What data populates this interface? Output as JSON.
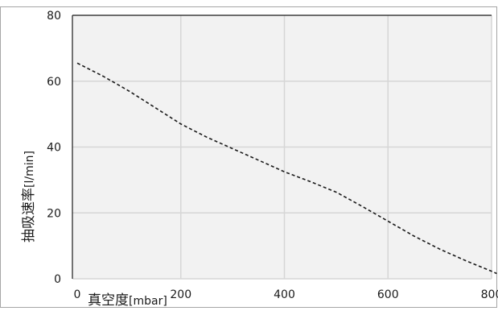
{
  "chart_data": {
    "type": "line",
    "title": "",
    "xlabel": "真空度",
    "xunit": "[mbar]",
    "ylabel": "抽吸速率",
    "yunit": "[l/min]",
    "xlim": [
      0,
      810
    ],
    "ylim": [
      0,
      80
    ],
    "xticks": [
      0,
      200,
      400,
      600,
      800
    ],
    "yticks": [
      0,
      20,
      40,
      60,
      80
    ],
    "grid": true,
    "legend": "none",
    "colors": {
      "plot_background": "#f2f2f2",
      "grid": "#d6d6d6",
      "line": "#1a1a1a",
      "frame": "#1a1a1a",
      "outer_frame": "#a6a6a6"
    },
    "series": [
      {
        "line_style": "dashed",
        "x": [
          0,
          50,
          100,
          150,
          200,
          250,
          300,
          350,
          400,
          450,
          500,
          550,
          600,
          650,
          700,
          750,
          800,
          810
        ],
        "y": [
          65.5,
          61.5,
          57,
          52,
          47,
          43,
          39.5,
          36,
          32.5,
          29.5,
          26.3,
          22,
          17.5,
          13,
          9,
          5.5,
          2.3,
          1.6
        ]
      }
    ]
  }
}
